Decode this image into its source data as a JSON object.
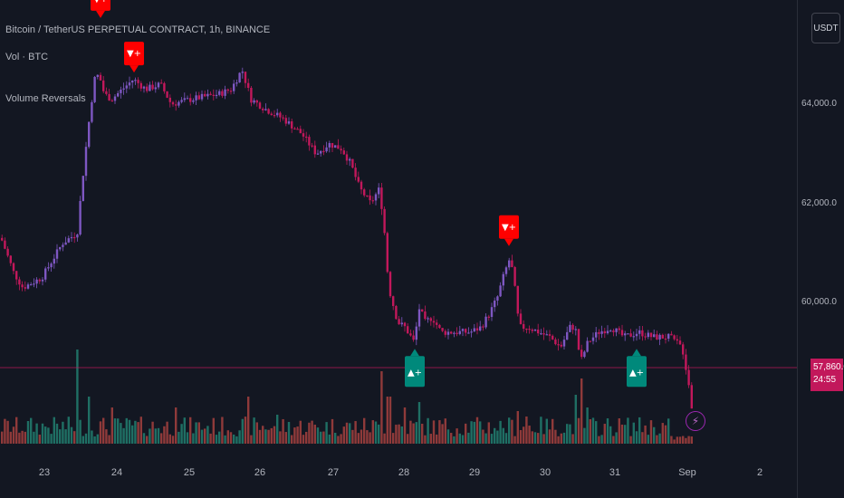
{
  "legend": {
    "title": "Bitcoin / TetherUS PERPETUAL CONTRACT, 1h, BINANCE",
    "volume": "Vol · BTC",
    "indicator": "Volume Reversals"
  },
  "currency_button": "USDT",
  "current_price": {
    "value": "57,860.0",
    "countdown": "24:55",
    "color": "#c2185b"
  },
  "colors": {
    "background": "#131722",
    "candle_up": "#7e57c2",
    "candle_down": "#c2185b",
    "vol_up": "#1f6f64",
    "vol_down": "#8f3a3a",
    "bear_signal": "#ff0000",
    "bull_signal": "#00897b"
  },
  "chart_data": {
    "type": "candlestick",
    "symbol": "Bitcoin / TetherUS PERPETUAL CONTRACT",
    "interval": "1h",
    "exchange": "BINANCE",
    "y_axis": {
      "ticks": [
        60000,
        62000,
        64000
      ],
      "tick_labels": [
        "60,000.0",
        "62,000.0",
        "64,000.0"
      ],
      "range": [
        57500,
        66500
      ]
    },
    "x_axis": {
      "tick_labels": [
        "23",
        "24",
        "25",
        "26",
        "27",
        "28",
        "29",
        "30",
        "31",
        "Sep",
        "2"
      ]
    },
    "price_path": [
      [
        0,
        61300
      ],
      [
        14,
        60600
      ],
      [
        24,
        60300
      ],
      [
        45,
        60500
      ],
      [
        68,
        61200
      ],
      [
        84,
        61400
      ],
      [
        90,
        62500
      ],
      [
        96,
        63500
      ],
      [
        103,
        64500
      ],
      [
        108,
        64600
      ],
      [
        114,
        64200
      ],
      [
        122,
        64100
      ],
      [
        134,
        64300
      ],
      [
        146,
        64500
      ],
      [
        160,
        64300
      ],
      [
        176,
        64400
      ],
      [
        188,
        64000
      ],
      [
        210,
        64100
      ],
      [
        240,
        64200
      ],
      [
        254,
        64300
      ],
      [
        266,
        64700
      ],
      [
        276,
        64100
      ],
      [
        292,
        63900
      ],
      [
        312,
        63700
      ],
      [
        332,
        63400
      ],
      [
        348,
        63000
      ],
      [
        362,
        63200
      ],
      [
        376,
        63100
      ],
      [
        386,
        62800
      ],
      [
        396,
        62300
      ],
      [
        408,
        62000
      ],
      [
        418,
        62300
      ],
      [
        423,
        61500
      ],
      [
        428,
        60300
      ],
      [
        438,
        59600
      ],
      [
        446,
        59500
      ],
      [
        456,
        59200
      ],
      [
        462,
        59900
      ],
      [
        468,
        59600
      ],
      [
        476,
        59700
      ],
      [
        486,
        59400
      ],
      [
        500,
        59400
      ],
      [
        518,
        59400
      ],
      [
        530,
        59500
      ],
      [
        540,
        59800
      ],
      [
        548,
        60100
      ],
      [
        556,
        60600
      ],
      [
        562,
        60900
      ],
      [
        566,
        60500
      ],
      [
        572,
        59500
      ],
      [
        582,
        59500
      ],
      [
        594,
        59400
      ],
      [
        606,
        59300
      ],
      [
        618,
        59100
      ],
      [
        628,
        59500
      ],
      [
        634,
        59500
      ],
      [
        640,
        58800
      ],
      [
        648,
        59200
      ],
      [
        660,
        59400
      ],
      [
        674,
        59500
      ],
      [
        688,
        59300
      ],
      [
        704,
        59400
      ],
      [
        720,
        59300
      ],
      [
        738,
        59300
      ],
      [
        752,
        59100
      ],
      [
        758,
        58500
      ],
      [
        764,
        57860
      ]
    ],
    "current_price": 57860,
    "signals": [
      {
        "direction": "bearish",
        "x_day": "24",
        "price": 65700,
        "label": "▼+"
      },
      {
        "direction": "bearish",
        "x_day": "24",
        "price": 64600,
        "label": "▼+"
      },
      {
        "direction": "bearish",
        "x_day": "29",
        "price": 61100,
        "label": "▼+"
      },
      {
        "direction": "bullish",
        "x_day": "28",
        "price": 59100,
        "label": "▲+"
      },
      {
        "direction": "bullish",
        "x_day": "31",
        "price": 59100,
        "label": "▲+"
      }
    ]
  }
}
